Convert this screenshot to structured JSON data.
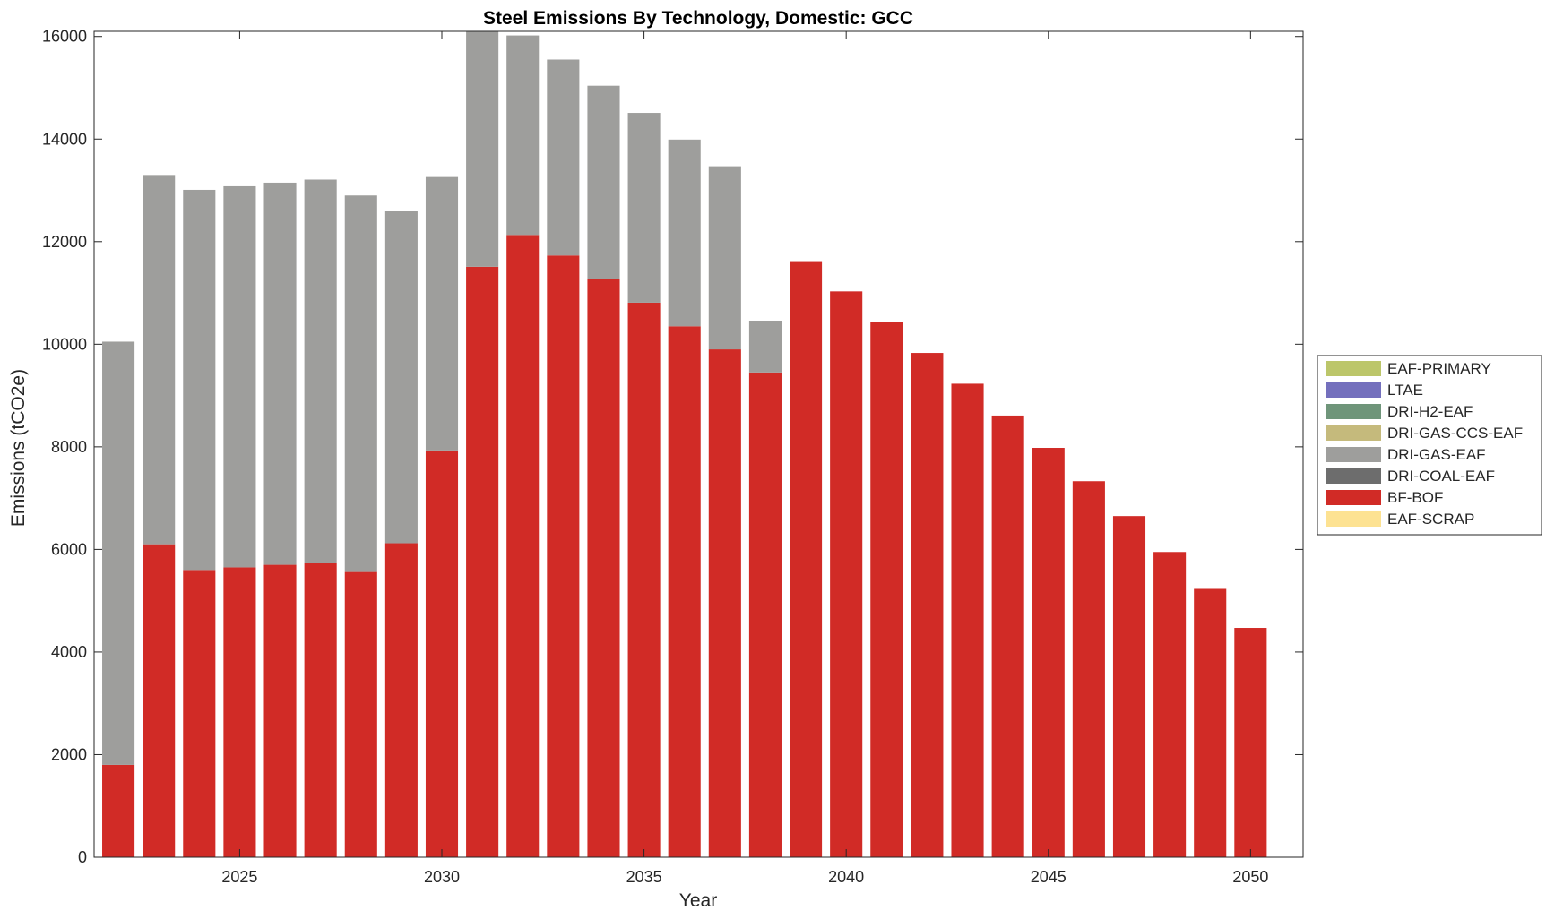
{
  "chart_data": {
    "type": "bar",
    "stacked": true,
    "title": "Steel Emissions By Technology, Domestic: GCC",
    "xlabel": "Year",
    "ylabel": "Emissions (tCO2e)",
    "xlim": [
      2021.4,
      2051.3
    ],
    "ylim": [
      0,
      16100
    ],
    "xticks": [
      2025,
      2030,
      2035,
      2040,
      2045,
      2050
    ],
    "yticks": [
      0,
      2000,
      4000,
      6000,
      8000,
      10000,
      12000,
      14000,
      16000
    ],
    "grid": false,
    "legend_location": "east-outside",
    "categories": [
      2022,
      2023,
      2024,
      2025,
      2026,
      2027,
      2028,
      2029,
      2030,
      2031,
      2032,
      2033,
      2034,
      2035,
      2036,
      2037,
      2038,
      2039,
      2040,
      2041,
      2042,
      2043,
      2044,
      2045,
      2046,
      2047,
      2048,
      2049,
      2050
    ],
    "legend": [
      {
        "name": "EAF-PRIMARY",
        "color": "#bcc66a"
      },
      {
        "name": "LTAE",
        "color": "#7470bd"
      },
      {
        "name": "DRI-H2-EAF",
        "color": "#6f957a"
      },
      {
        "name": "DRI-GAS-CCS-EAF",
        "color": "#c5ba7c"
      },
      {
        "name": "DRI-GAS-EAF",
        "color": "#9e9e9c"
      },
      {
        "name": "DRI-COAL-EAF",
        "color": "#6d6d6d"
      },
      {
        "name": "BF-BOF",
        "color": "#d12b26"
      },
      {
        "name": "EAF-SCRAP",
        "color": "#fde292"
      }
    ],
    "series": [
      {
        "name": "EAF-SCRAP",
        "color": "#fde292",
        "values": [
          0,
          0,
          0,
          0,
          0,
          0,
          0,
          0,
          0,
          0,
          0,
          0,
          0,
          0,
          0,
          0,
          0,
          0,
          0,
          0,
          0,
          0,
          0,
          0,
          0,
          0,
          0,
          0,
          0
        ]
      },
      {
        "name": "BF-BOF",
        "color": "#d12b26",
        "values": [
          1800,
          6100,
          5600,
          5650,
          5700,
          5730,
          5560,
          6120,
          7930,
          11510,
          12130,
          11730,
          11270,
          10810,
          10350,
          9900,
          9450,
          11620,
          11030,
          10430,
          9830,
          9230,
          8610,
          7980,
          7330,
          6650,
          5950,
          5230,
          4470
        ]
      },
      {
        "name": "DRI-COAL-EAF",
        "color": "#6d6d6d",
        "values": [
          0,
          0,
          0,
          0,
          0,
          0,
          0,
          0,
          0,
          0,
          0,
          0,
          0,
          0,
          0,
          0,
          0,
          0,
          0,
          0,
          0,
          0,
          0,
          0,
          0,
          0,
          0,
          0,
          0
        ]
      },
      {
        "name": "DRI-GAS-EAF",
        "color": "#9e9e9c",
        "values": [
          8250,
          7200,
          7410,
          7430,
          7450,
          7480,
          7340,
          6470,
          5330,
          4590,
          3890,
          3820,
          3770,
          3700,
          3640,
          3570,
          1010,
          0,
          0,
          0,
          0,
          0,
          0,
          0,
          0,
          0,
          0,
          0,
          0
        ]
      },
      {
        "name": "DRI-GAS-CCS-EAF",
        "color": "#c5ba7c",
        "values": [
          0,
          0,
          0,
          0,
          0,
          0,
          0,
          0,
          0,
          0,
          0,
          0,
          0,
          0,
          0,
          0,
          0,
          0,
          0,
          0,
          0,
          0,
          0,
          0,
          0,
          0,
          0,
          0,
          0
        ]
      },
      {
        "name": "DRI-H2-EAF",
        "color": "#6f957a",
        "values": [
          0,
          0,
          0,
          0,
          0,
          0,
          0,
          0,
          0,
          0,
          0,
          0,
          0,
          0,
          0,
          0,
          0,
          0,
          0,
          0,
          0,
          0,
          0,
          0,
          0,
          0,
          0,
          0,
          0
        ]
      },
      {
        "name": "LTAE",
        "color": "#7470bd",
        "values": [
          0,
          0,
          0,
          0,
          0,
          0,
          0,
          0,
          0,
          0,
          0,
          0,
          0,
          0,
          0,
          0,
          0,
          0,
          0,
          0,
          0,
          0,
          0,
          0,
          0,
          0,
          0,
          0,
          0
        ]
      },
      {
        "name": "EAF-PRIMARY",
        "color": "#bcc66a",
        "values": [
          0,
          0,
          0,
          0,
          0,
          0,
          0,
          0,
          0,
          0,
          0,
          0,
          0,
          0,
          0,
          0,
          0,
          0,
          0,
          0,
          0,
          0,
          0,
          0,
          0,
          0,
          0,
          0,
          0
        ]
      }
    ]
  }
}
